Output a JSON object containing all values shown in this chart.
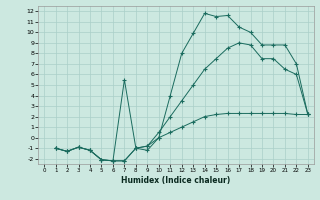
{
  "xlabel": "Humidex (Indice chaleur)",
  "bg_color": "#cce8e0",
  "line_color": "#1a6b5e",
  "grid_color": "#aacfc8",
  "xlim": [
    -0.5,
    23.5
  ],
  "ylim": [
    -2.5,
    12.5
  ],
  "xticks": [
    0,
    1,
    2,
    3,
    4,
    5,
    6,
    7,
    8,
    9,
    10,
    11,
    12,
    13,
    14,
    15,
    16,
    17,
    18,
    19,
    20,
    21,
    22,
    23
  ],
  "yticks": [
    -2,
    -1,
    0,
    1,
    2,
    3,
    4,
    5,
    6,
    7,
    8,
    9,
    10,
    11,
    12
  ],
  "line1_x": [
    1,
    2,
    3,
    4,
    5,
    6,
    7,
    8,
    9,
    10,
    11,
    12,
    13,
    14,
    15,
    16,
    17,
    18,
    19,
    20,
    21,
    22,
    23
  ],
  "line1_y": [
    -1,
    -1.3,
    -0.9,
    -1.2,
    -2.1,
    -2.2,
    5.5,
    -1.0,
    -1.2,
    0.0,
    4.0,
    8.0,
    9.9,
    11.8,
    11.5,
    11.6,
    10.5,
    10.0,
    8.8,
    8.8,
    8.8,
    7.0,
    2.2
  ],
  "line2_x": [
    1,
    2,
    3,
    4,
    5,
    6,
    7,
    8,
    9,
    10,
    11,
    12,
    13,
    14,
    15,
    16,
    17,
    18,
    19,
    20,
    21,
    22,
    23
  ],
  "line2_y": [
    -1,
    -1.3,
    -0.9,
    -1.2,
    -2.1,
    -2.2,
    -2.2,
    -1.0,
    -0.8,
    0.5,
    2.0,
    3.5,
    5.0,
    6.5,
    7.5,
    8.5,
    9.0,
    8.8,
    7.5,
    7.5,
    6.5,
    6.0,
    2.2
  ],
  "line3_x": [
    1,
    2,
    3,
    4,
    5,
    6,
    7,
    8,
    9,
    10,
    11,
    12,
    13,
    14,
    15,
    16,
    17,
    18,
    19,
    20,
    21,
    22,
    23
  ],
  "line3_y": [
    -1,
    -1.3,
    -0.9,
    -1.2,
    -2.1,
    -2.2,
    -2.2,
    -1.0,
    -0.8,
    0.0,
    0.5,
    1.0,
    1.5,
    2.0,
    2.2,
    2.3,
    2.3,
    2.3,
    2.3,
    2.3,
    2.3,
    2.2,
    2.2
  ]
}
